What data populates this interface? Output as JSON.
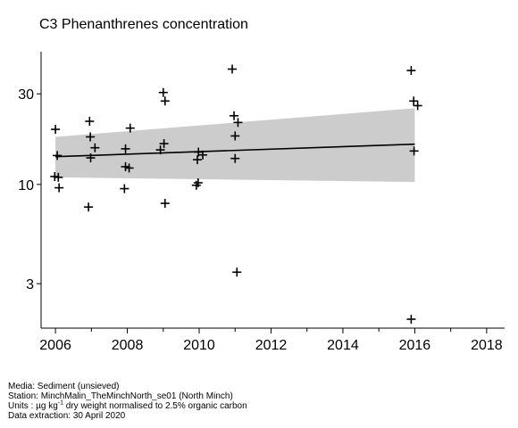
{
  "chart_data": {
    "type": "scatter",
    "title": "C3 Phenanthrenes concentration",
    "xlabel": "",
    "ylabel": "",
    "y_scale": "log",
    "xlim": [
      2005.6,
      2018.5
    ],
    "ylim": [
      1.75,
      50
    ],
    "x_ticks": [
      2006,
      2008,
      2010,
      2012,
      2014,
      2016,
      2018
    ],
    "x_tick_labels": [
      "2006",
      "2008",
      "2010",
      "2012",
      "2014",
      "2016",
      "2018"
    ],
    "x_minor_ticks": [
      2007,
      2009,
      2011,
      2013,
      2015,
      2017
    ],
    "y_ticks": [
      3,
      10,
      30
    ],
    "y_tick_labels": [
      "3",
      "10",
      "30"
    ],
    "grid": false,
    "point_symbol": "+",
    "points": [
      {
        "x": 2006.0,
        "y": 19.5
      },
      {
        "x": 2006.05,
        "y": 14.2
      },
      {
        "x": 2005.98,
        "y": 11.0
      },
      {
        "x": 2006.08,
        "y": 10.9
      },
      {
        "x": 2006.1,
        "y": 9.6
      },
      {
        "x": 2006.95,
        "y": 21.5
      },
      {
        "x": 2006.97,
        "y": 17.8
      },
      {
        "x": 2007.1,
        "y": 15.6
      },
      {
        "x": 2006.98,
        "y": 13.8
      },
      {
        "x": 2006.92,
        "y": 7.6
      },
      {
        "x": 2008.08,
        "y": 19.8
      },
      {
        "x": 2007.95,
        "y": 15.4
      },
      {
        "x": 2007.95,
        "y": 12.4
      },
      {
        "x": 2008.05,
        "y": 12.2
      },
      {
        "x": 2007.92,
        "y": 9.5
      },
      {
        "x": 2009.0,
        "y": 30.5
      },
      {
        "x": 2009.05,
        "y": 27.5
      },
      {
        "x": 2009.02,
        "y": 16.4
      },
      {
        "x": 2008.92,
        "y": 15.2
      },
      {
        "x": 2009.05,
        "y": 7.95
      },
      {
        "x": 2010.92,
        "y": 40.5
      },
      {
        "x": 2010.97,
        "y": 23.0
      },
      {
        "x": 2011.08,
        "y": 21.2
      },
      {
        "x": 2011.0,
        "y": 18.0
      },
      {
        "x": 2011.0,
        "y": 13.7
      },
      {
        "x": 2011.05,
        "y": 3.45
      },
      {
        "x": 2009.98,
        "y": 14.8
      },
      {
        "x": 2010.1,
        "y": 14.3
      },
      {
        "x": 2009.95,
        "y": 13.5
      },
      {
        "x": 2009.97,
        "y": 10.2
      },
      {
        "x": 2009.92,
        "y": 9.9
      },
      {
        "x": 2015.9,
        "y": 39.8
      },
      {
        "x": 2015.97,
        "y": 27.5
      },
      {
        "x": 2016.08,
        "y": 26.0
      },
      {
        "x": 2015.98,
        "y": 15.0
      },
      {
        "x": 2015.9,
        "y": 1.95
      }
    ],
    "trend": {
      "x": [
        2006,
        2016
      ],
      "y": [
        14.0,
        16.3
      ],
      "band_lower": [
        10.9,
        10.3
      ],
      "band_upper": [
        17.8,
        25.2
      ]
    }
  },
  "footer": {
    "media": "Media: Sediment (unsieved)",
    "station": "Station: MinchMalin_TheMinchNorth_se01 (North Minch)",
    "units_prefix": "Units : µg kg",
    "units_sup": "-1",
    "units_suffix": " dry weight normalised to 2.5% organic carbon",
    "extraction": "Data extraction: 30 April 2020"
  },
  "colors": {
    "band": "#cccccc",
    "line": "#000000",
    "points": "#000000"
  }
}
